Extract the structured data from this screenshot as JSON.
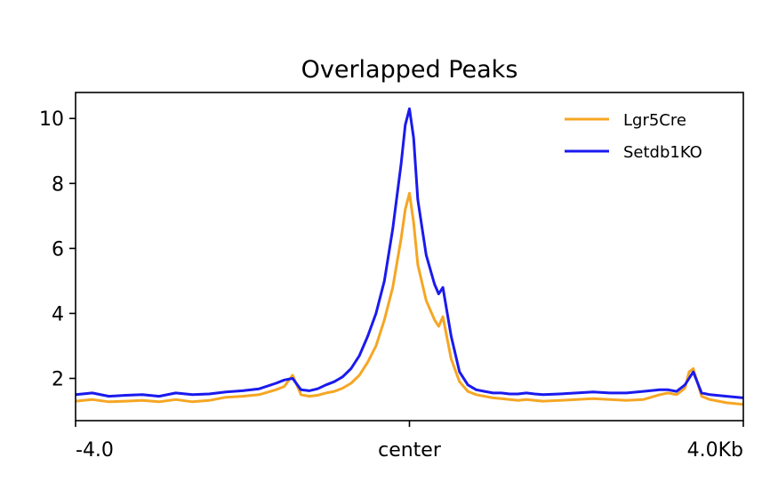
{
  "chart_data": {
    "type": "line",
    "title": "Overlapped Peaks",
    "xlabel": "",
    "ylabel": "",
    "xlim": [
      -4.0,
      4.0
    ],
    "ylim": [
      0.7,
      10.8
    ],
    "x_ticks": [
      {
        "value": -4.0,
        "label": "-4.0"
      },
      {
        "value": 0.0,
        "label": "center"
      },
      {
        "value": 4.0,
        "label": "4.0Kb"
      }
    ],
    "y_ticks": [
      {
        "value": 2,
        "label": "2"
      },
      {
        "value": 4,
        "label": "4"
      },
      {
        "value": 6,
        "label": "6"
      },
      {
        "value": 8,
        "label": "8"
      },
      {
        "value": 10,
        "label": "10"
      }
    ],
    "grid": false,
    "legend": {
      "placement": "top-right"
    },
    "x": [
      -4.0,
      -3.8,
      -3.6,
      -3.4,
      -3.2,
      -3.0,
      -2.8,
      -2.6,
      -2.4,
      -2.2,
      -2.0,
      -1.8,
      -1.6,
      -1.5,
      -1.4,
      -1.3,
      -1.2,
      -1.1,
      -1.0,
      -0.9,
      -0.8,
      -0.7,
      -0.6,
      -0.5,
      -0.4,
      -0.3,
      -0.2,
      -0.1,
      -0.05,
      0.0,
      0.05,
      0.1,
      0.2,
      0.3,
      0.35,
      0.4,
      0.5,
      0.6,
      0.7,
      0.8,
      0.9,
      1.0,
      1.1,
      1.2,
      1.3,
      1.4,
      1.5,
      1.6,
      1.8,
      2.0,
      2.2,
      2.4,
      2.6,
      2.8,
      3.0,
      3.1,
      3.2,
      3.3,
      3.35,
      3.4,
      3.5,
      3.6,
      3.8,
      4.0
    ],
    "series": [
      {
        "name": "Lgr5Cre",
        "color": "#f5a623",
        "values": [
          1.3,
          1.35,
          1.28,
          1.3,
          1.32,
          1.28,
          1.35,
          1.28,
          1.32,
          1.42,
          1.45,
          1.5,
          1.65,
          1.75,
          2.1,
          1.5,
          1.45,
          1.48,
          1.55,
          1.6,
          1.7,
          1.85,
          2.1,
          2.5,
          3.0,
          3.8,
          4.8,
          6.3,
          7.2,
          7.7,
          6.8,
          5.5,
          4.4,
          3.8,
          3.6,
          3.9,
          2.6,
          1.9,
          1.6,
          1.5,
          1.45,
          1.4,
          1.38,
          1.35,
          1.32,
          1.35,
          1.32,
          1.3,
          1.32,
          1.35,
          1.38,
          1.35,
          1.32,
          1.35,
          1.5,
          1.55,
          1.5,
          1.7,
          2.2,
          2.3,
          1.45,
          1.35,
          1.25,
          1.2
        ]
      },
      {
        "name": "Setdb1KO",
        "color": "#1a1aee",
        "values": [
          1.5,
          1.55,
          1.45,
          1.48,
          1.5,
          1.45,
          1.55,
          1.5,
          1.52,
          1.58,
          1.62,
          1.68,
          1.85,
          1.95,
          2.0,
          1.65,
          1.62,
          1.68,
          1.8,
          1.9,
          2.05,
          2.3,
          2.7,
          3.3,
          4.0,
          5.0,
          6.6,
          8.6,
          9.8,
          10.3,
          9.4,
          7.5,
          5.8,
          4.9,
          4.6,
          4.8,
          3.3,
          2.2,
          1.8,
          1.65,
          1.6,
          1.55,
          1.55,
          1.52,
          1.52,
          1.55,
          1.52,
          1.5,
          1.52,
          1.55,
          1.58,
          1.55,
          1.55,
          1.6,
          1.65,
          1.65,
          1.6,
          1.8,
          2.0,
          2.2,
          1.55,
          1.5,
          1.45,
          1.4
        ]
      }
    ]
  }
}
